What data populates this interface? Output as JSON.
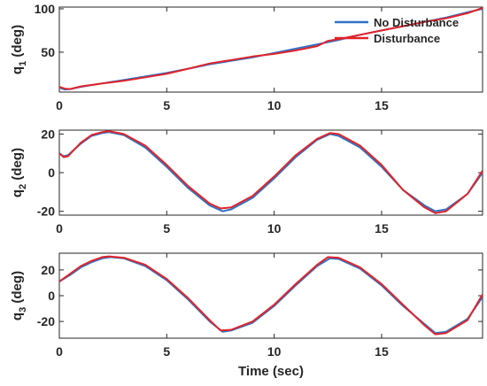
{
  "colors": {
    "no_disturbance": "#2f72c4",
    "disturbance": "#e2232a",
    "axes": "#262626"
  },
  "chart_data": [
    {
      "type": "line",
      "ylabel": {
        "main": "q",
        "sub": "1",
        "unit": "(deg)"
      },
      "xlabel": "",
      "xlim": [
        0,
        19.7
      ],
      "ylim": [
        4,
        102
      ],
      "xticks": [
        0,
        5,
        10,
        15
      ],
      "yticks": [
        50,
        100
      ],
      "grid": false,
      "legend": {
        "position": "top-right",
        "entries": [
          "No Disturbance",
          "Disturbance"
        ]
      },
      "series": [
        {
          "name": "No Disturbance",
          "color": "#2f72c4",
          "x": [
            0,
            0.25,
            0.5,
            1,
            2,
            3,
            4,
            5,
            6,
            7,
            8,
            9,
            10,
            11,
            12,
            13,
            14,
            15,
            16,
            17,
            18,
            19,
            19.7
          ],
          "y": [
            9,
            7,
            7.5,
            10,
            14,
            18,
            22,
            26,
            31,
            36,
            40,
            44,
            49,
            54,
            59,
            64,
            70,
            75,
            80,
            85,
            90,
            96,
            100
          ]
        },
        {
          "name": "Disturbance",
          "color": "#e2232a",
          "x": [
            0,
            0.25,
            0.5,
            1,
            2,
            3,
            4,
            5,
            6,
            7,
            8,
            9,
            10,
            11,
            12,
            12.5,
            13,
            14,
            15,
            16,
            17,
            18,
            19,
            19.7
          ],
          "y": [
            10,
            8,
            7.5,
            10.5,
            14,
            17,
            21,
            25,
            31,
            37,
            41,
            45,
            48,
            52,
            57,
            63,
            65,
            70,
            75,
            80,
            85,
            89,
            95,
            101
          ]
        }
      ]
    },
    {
      "type": "line",
      "ylabel": {
        "main": "q",
        "sub": "2",
        "unit": "(deg)"
      },
      "xlabel": "",
      "xlim": [
        0,
        19.7
      ],
      "ylim": [
        -22,
        22
      ],
      "xticks": [
        0,
        5,
        10,
        15
      ],
      "yticks": [
        -20,
        0,
        20
      ],
      "grid": false,
      "series": [
        {
          "name": "No Disturbance",
          "color": "#2f72c4",
          "x": [
            0,
            0.2,
            0.4,
            0.7,
            1,
            1.5,
            2,
            2.3,
            3,
            4,
            5,
            6,
            7,
            7.6,
            8,
            9,
            10,
            11,
            12,
            12.6,
            13,
            14,
            15,
            16,
            17,
            17.5,
            18,
            19,
            19.7
          ],
          "y": [
            10,
            8.5,
            9,
            12,
            15,
            19,
            20.5,
            21,
            19.5,
            13,
            3,
            -8,
            -17,
            -20,
            -19,
            -13,
            -3,
            8,
            17,
            20,
            19,
            13,
            3,
            -9,
            -17,
            -20,
            -19,
            -11,
            0
          ]
        },
        {
          "name": "Disturbance",
          "color": "#e2232a",
          "x": [
            0,
            0.2,
            0.4,
            0.7,
            1,
            1.5,
            2,
            2.3,
            3,
            4,
            5,
            6,
            7,
            7.5,
            8,
            9,
            10,
            11,
            12,
            12.6,
            13,
            14,
            15,
            16,
            17,
            17.5,
            18,
            19,
            19.7
          ],
          "y": [
            10,
            8,
            8.5,
            12,
            15.5,
            19.5,
            21,
            21.5,
            20,
            14,
            4,
            -7,
            -16,
            -18.5,
            -18,
            -12,
            -2,
            9,
            17.5,
            20.5,
            20,
            14,
            4,
            -9,
            -18,
            -21,
            -20,
            -11,
            1
          ]
        }
      ]
    },
    {
      "type": "line",
      "ylabel": {
        "main": "q",
        "sub": "3",
        "unit": "(deg)"
      },
      "xlabel": "Time (sec)",
      "xlim": [
        0,
        19.7
      ],
      "ylim": [
        -33,
        33
      ],
      "xticks": [
        0,
        5,
        10,
        15
      ],
      "yticks": [
        -20,
        0,
        20
      ],
      "grid": false,
      "series": [
        {
          "name": "No Disturbance",
          "color": "#2f72c4",
          "x": [
            0,
            0.5,
            1,
            1.5,
            2,
            2.4,
            3,
            4,
            5,
            6,
            7,
            7.6,
            8,
            9,
            10,
            11,
            12,
            12.6,
            13,
            14,
            15,
            16,
            17,
            17.5,
            18,
            19,
            19.7
          ],
          "y": [
            11,
            16,
            22,
            26,
            29,
            30,
            29,
            23,
            12,
            -3,
            -20,
            -28,
            -27,
            -21,
            -8,
            8,
            23,
            29,
            28.5,
            21,
            8,
            -8,
            -22,
            -29,
            -28,
            -18,
            -1
          ]
        },
        {
          "name": "Disturbance",
          "color": "#e2232a",
          "x": [
            0,
            0.5,
            1,
            1.5,
            2,
            2.3,
            3,
            4,
            5,
            6,
            7,
            7.5,
            8,
            9,
            10,
            11,
            12,
            12.5,
            13,
            14,
            15,
            16,
            17,
            17.5,
            18,
            19,
            19.7
          ],
          "y": [
            11,
            17,
            23,
            27,
            30,
            30.5,
            29.5,
            24,
            13,
            -2,
            -19,
            -27,
            -26.5,
            -20,
            -7,
            9,
            24,
            30,
            29.5,
            22,
            9,
            -7,
            -23,
            -30,
            -29,
            -19,
            1
          ]
        }
      ]
    }
  ]
}
